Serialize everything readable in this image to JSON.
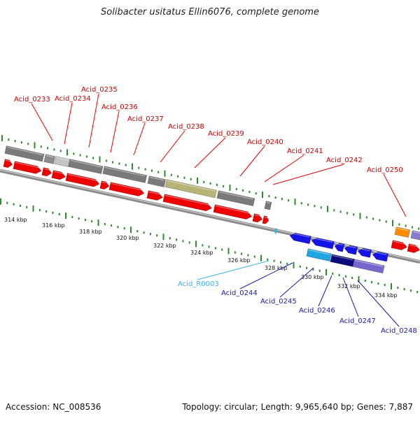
{
  "title": "Solibacter usitatus Ellin6076, complete genome",
  "footer": {
    "accession": "Accession: NC_008536",
    "summary": "Topology: circular; Length: 9,965,640 bp; Genes: 7,887"
  },
  "colors": {
    "forward_cds": "#ee0000",
    "reverse_cds": "#1414e6",
    "forward_label": "#cc0000",
    "reverse_label": "#1a1aaa",
    "rna_label": "#33b5e5",
    "backbone": "#8a8a8a",
    "tick": "#2e8b2e"
  },
  "axis": {
    "unit": "kbp",
    "ticks": [
      {
        "label": "314 kbp"
      },
      {
        "label": "316 kbp"
      },
      {
        "label": "318 kbp"
      },
      {
        "label": "320 kbp"
      },
      {
        "label": "322 kbp"
      },
      {
        "label": "324 kbp"
      },
      {
        "label": "326 kbp"
      },
      {
        "label": "328 kbp"
      },
      {
        "label": "330 kbp"
      },
      {
        "label": "332 kbp"
      },
      {
        "label": "334 kbp"
      }
    ]
  },
  "forward_labels": [
    "Acid_0233",
    "Acid_0234",
    "Acid_0235",
    "Acid_0236",
    "Acid_0237",
    "Acid_0238",
    "Acid_0239",
    "Acid_0240",
    "Acid_0241",
    "Acid_0242",
    "Acid_0250"
  ],
  "reverse_labels": [
    "Acid_R0003",
    "Acid_0244",
    "Acid_0245",
    "Acid_0246",
    "Acid_0247",
    "Acid_0248"
  ]
}
